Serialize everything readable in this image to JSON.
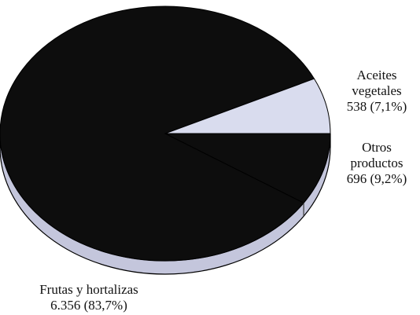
{
  "chart_data": {
    "type": "pie",
    "title": "",
    "slices": [
      {
        "name": "Frutas y hortalizas",
        "value": 6356,
        "value_label": "6.356",
        "percent": 83.7,
        "percent_label": "(83,7%)",
        "color": "#0d0d0d"
      },
      {
        "name": "Aceites vegetales",
        "value": 538,
        "value_label": "538",
        "percent": 7.1,
        "percent_label": "(7,1%)",
        "color": "#d9dcee"
      },
      {
        "name": "Otros productos",
        "value": 696,
        "value_label": "696",
        "percent": 9.2,
        "percent_label": "(9,2%)",
        "color": "#0d0d0d"
      }
    ],
    "legend": "none"
  },
  "labels": {
    "aceites": {
      "line1": "Aceites",
      "line2": "vegetales",
      "line3": "538 (7,1%)"
    },
    "otros": {
      "line1": "Otros",
      "line2": "productos",
      "line3": "696 (9,2%)"
    },
    "frutas": {
      "line1": "Frutas y hortalizas",
      "line2": "6.356 (83,7%)"
    }
  },
  "colors": {
    "dark_slice": "#0d0d0d",
    "light_slice": "#d9dcee",
    "side_wall": "#c4c6dc",
    "outline": "#000000"
  }
}
